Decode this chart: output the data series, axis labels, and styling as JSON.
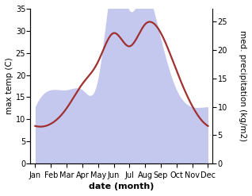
{
  "months": [
    "Jan",
    "Feb",
    "Mar",
    "Apr",
    "May",
    "Jun",
    "Jul",
    "Aug",
    "Sep",
    "Oct",
    "Nov",
    "Dec"
  ],
  "month_x": [
    0,
    1,
    2,
    3,
    4,
    5,
    6,
    7,
    8,
    9,
    10,
    11
  ],
  "precipitation": [
    10,
    13,
    13,
    13,
    15,
    33,
    27,
    30,
    22,
    13,
    10,
    10
  ],
  "max_temp": [
    8.5,
    9.0,
    12.5,
    18.0,
    23.0,
    29.5,
    26.5,
    31.5,
    29.5,
    21.0,
    13.0,
    8.5
  ],
  "precip_color_fill": "#c5c8ee",
  "temp_color": "#a03030",
  "ylim_left": [
    0,
    35
  ],
  "ylim_right": [
    0,
    27.3
  ],
  "yticks_left": [
    0,
    5,
    10,
    15,
    20,
    25,
    30,
    35
  ],
  "yticks_right": [
    0,
    5,
    10,
    15,
    20,
    25
  ],
  "ylabel_left": "max temp (C)",
  "ylabel_right": "med. precipitation (kg/m2)",
  "xlabel": "date (month)",
  "xlabel_fontsize": 8,
  "ylabel_fontsize": 7.5,
  "tick_fontsize": 7,
  "temp_linewidth": 1.6,
  "figsize": [
    3.18,
    2.47
  ],
  "dpi": 100
}
